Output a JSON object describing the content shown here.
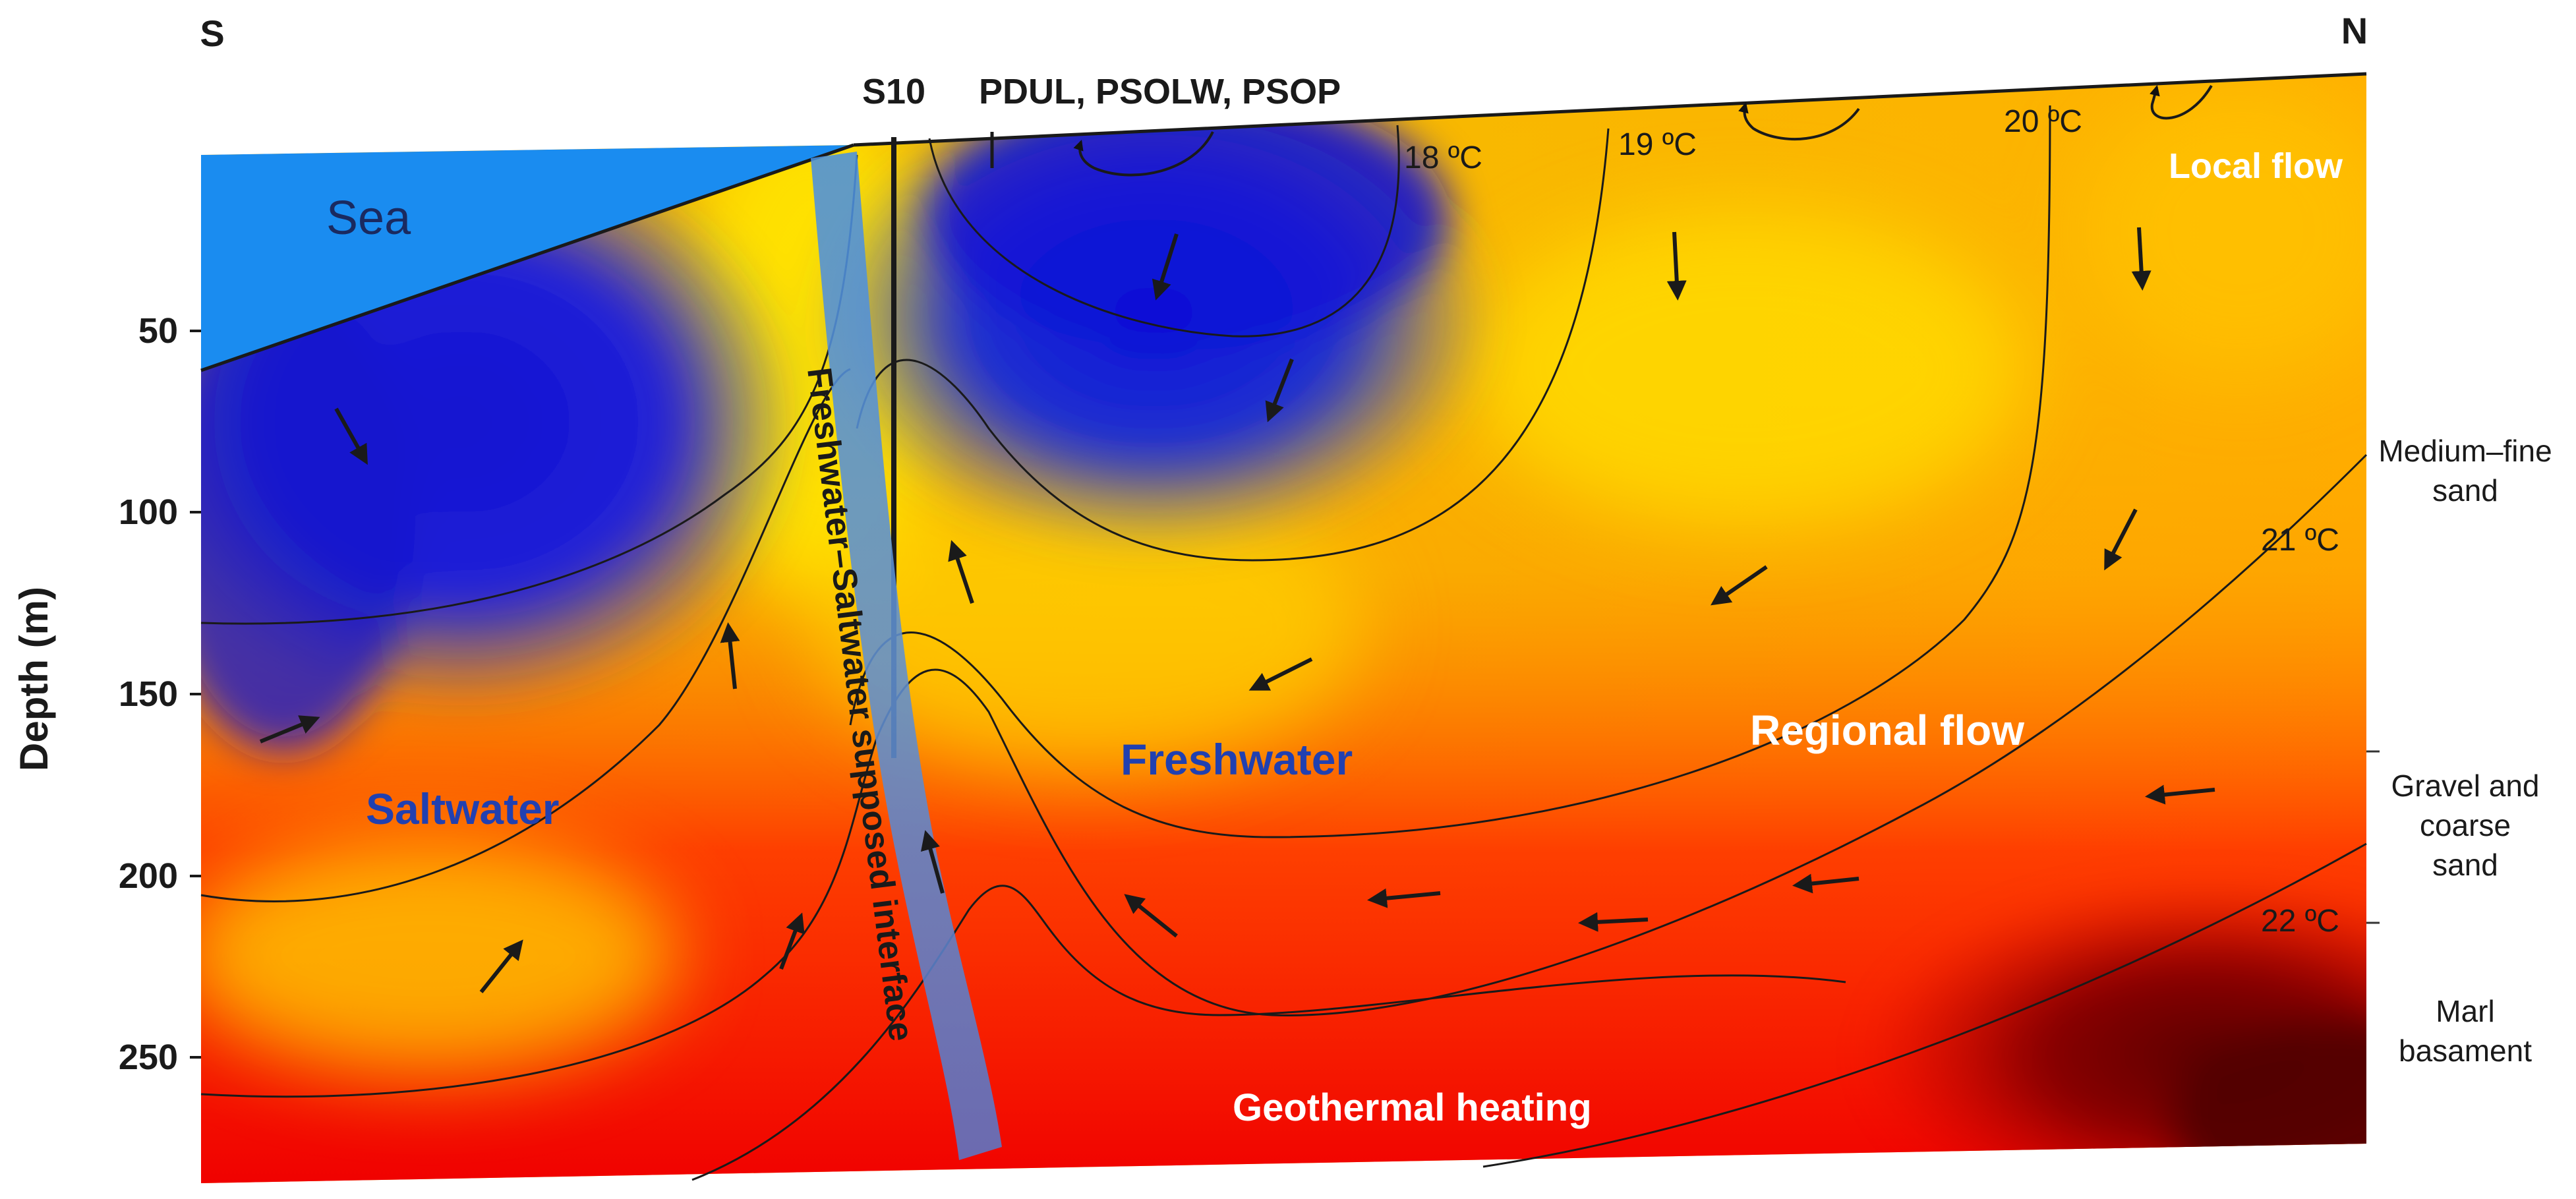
{
  "orientation": {
    "left": "S",
    "right": "N"
  },
  "wells": {
    "s10": "S10",
    "group": "PDUL, PSOLW, PSOP"
  },
  "y_axis": {
    "label": "Depth (m)",
    "ticks": [
      "50",
      "100",
      "150",
      "200",
      "250"
    ]
  },
  "isotherms": [
    "18 ºC",
    "19 ºC",
    "20 ºC",
    "21 ºC",
    "22 ºC"
  ],
  "zones": {
    "sea": "Sea",
    "saltwater": "Saltwater",
    "freshwater": "Freshwater",
    "interface": "Freshwater–Saltwater supposed interface",
    "local_flow": "Local flow",
    "regional_flow": "Regional flow",
    "geothermal": "Geothermal heating"
  },
  "lithology": [
    "Medium–fine",
    "sand",
    "Gravel and",
    "coarse",
    "sand",
    "Marl",
    "basament"
  ],
  "colors": {
    "sea": "#1a8cf0",
    "saltwater": "#1616d6",
    "freshwater": "#ffd400",
    "warm": "#ff2000",
    "deep": "#5a0000",
    "interface_band": "#5b8fd2",
    "label_blue": "#2140b0",
    "label_white": "#ffffff"
  }
}
